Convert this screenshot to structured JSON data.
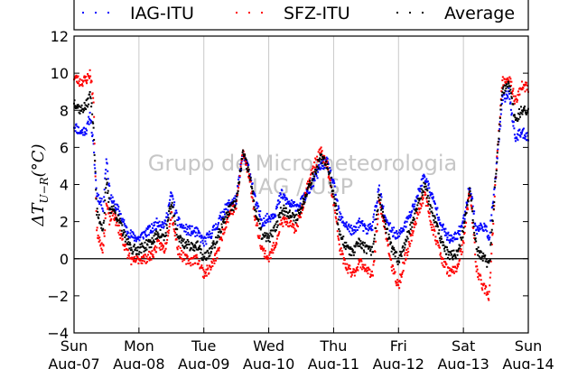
{
  "chart_data": {
    "type": "scatter",
    "ylabel": "ΔT_{U−R}(°C)",
    "ylabel_display": "ΔT",
    "ylabel_sub": "U−R",
    "ylabel_unit": "(°C)",
    "ylim": [
      -4,
      12
    ],
    "xlim": [
      0,
      7
    ],
    "yticks": [
      -4,
      -2,
      0,
      2,
      4,
      6,
      8,
      10,
      12
    ],
    "ytick_labels": [
      "−4",
      "−2",
      "0",
      "2",
      "4",
      "6",
      "8",
      "10",
      "12"
    ],
    "xticks": [
      0,
      1,
      2,
      3,
      4,
      5,
      6,
      7
    ],
    "xtick_labels": [
      [
        "Sun",
        "Aug-07"
      ],
      [
        "Mon",
        "Aug-08"
      ],
      [
        "Tue",
        "Aug-09"
      ],
      [
        "Wed",
        "Aug-10"
      ],
      [
        "Thu",
        "Aug-11"
      ],
      [
        "Fri",
        "Aug-12"
      ],
      [
        "Sat",
        "Aug-13"
      ],
      [
        "Sun",
        "Aug-14"
      ]
    ],
    "grid": "vertical",
    "reference_line": 0,
    "legend_position": "top",
    "watermark": [
      "Grupo de Micrometeorologia",
      "IAG / USP"
    ],
    "series": [
      {
        "name": "IAG-ITU",
        "color": "#0000ff",
        "x": [
          0.0,
          0.1,
          0.2,
          0.25,
          0.3,
          0.35,
          0.45,
          0.5,
          0.55,
          0.6,
          0.7,
          0.8,
          0.9,
          1.0,
          1.1,
          1.2,
          1.3,
          1.4,
          1.5,
          1.6,
          1.7,
          1.8,
          1.9,
          2.0,
          2.1,
          2.2,
          2.3,
          2.4,
          2.5,
          2.6,
          2.7,
          2.8,
          2.9,
          3.0,
          3.1,
          3.2,
          3.3,
          3.4,
          3.5,
          3.6,
          3.7,
          3.8,
          3.9,
          4.0,
          4.1,
          4.2,
          4.3,
          4.4,
          4.5,
          4.6,
          4.7,
          4.8,
          4.9,
          5.0,
          5.1,
          5.2,
          5.3,
          5.4,
          5.5,
          5.6,
          5.7,
          5.8,
          5.9,
          6.0,
          6.1,
          6.2,
          6.3,
          6.4,
          6.5,
          6.6,
          6.7,
          6.8,
          6.9,
          7.0
        ],
        "y": [
          7.2,
          6.8,
          7.0,
          7.8,
          6.0,
          3.5,
          2.8,
          5.5,
          3.5,
          3.0,
          2.5,
          1.6,
          1.2,
          1.1,
          1.4,
          1.6,
          2.0,
          1.8,
          3.5,
          2.0,
          1.6,
          1.5,
          1.4,
          0.9,
          1.3,
          1.8,
          2.5,
          3.0,
          3.2,
          5.6,
          4.8,
          3.0,
          2.0,
          2.2,
          2.5,
          3.5,
          3.0,
          2.8,
          3.0,
          3.6,
          4.2,
          5.0,
          5.2,
          4.0,
          2.2,
          1.8,
          1.4,
          2.0,
          1.5,
          1.8,
          3.8,
          2.0,
          1.5,
          1.2,
          1.8,
          2.5,
          3.5,
          4.5,
          3.5,
          2.5,
          1.5,
          1.0,
          1.2,
          2.0,
          4.0,
          1.5,
          1.8,
          1.2,
          4.5,
          8.5,
          9.0,
          6.5,
          6.8,
          6.6
        ]
      },
      {
        "name": "SFZ-ITU",
        "color": "#ff0000",
        "x": [
          0.0,
          0.1,
          0.2,
          0.25,
          0.3,
          0.35,
          0.45,
          0.5,
          0.55,
          0.6,
          0.7,
          0.8,
          0.9,
          1.0,
          1.1,
          1.2,
          1.3,
          1.4,
          1.5,
          1.6,
          1.7,
          1.8,
          1.9,
          2.0,
          2.1,
          2.2,
          2.3,
          2.4,
          2.5,
          2.6,
          2.7,
          2.8,
          2.9,
          3.0,
          3.1,
          3.2,
          3.3,
          3.4,
          3.5,
          3.6,
          3.7,
          3.8,
          3.9,
          4.0,
          4.1,
          4.2,
          4.3,
          4.4,
          4.5,
          4.6,
          4.7,
          4.8,
          4.9,
          5.0,
          5.1,
          5.2,
          5.3,
          5.4,
          5.5,
          5.6,
          5.7,
          5.8,
          5.9,
          6.0,
          6.1,
          6.2,
          6.3,
          6.4,
          6.5,
          6.6,
          6.7,
          6.8,
          6.9,
          7.0
        ],
        "y": [
          9.8,
          9.5,
          9.7,
          10.0,
          8.5,
          1.5,
          0.5,
          3.0,
          2.0,
          2.5,
          1.5,
          0.5,
          -0.2,
          0.0,
          0.0,
          0.2,
          0.8,
          0.5,
          2.5,
          0.5,
          0.0,
          -0.1,
          0.0,
          -0.8,
          -0.5,
          0.2,
          1.5,
          2.5,
          2.8,
          5.8,
          4.5,
          2.0,
          0.5,
          0.0,
          0.8,
          2.0,
          2.0,
          1.5,
          2.5,
          4.0,
          5.0,
          5.8,
          5.0,
          3.0,
          0.5,
          -0.5,
          -0.8,
          -0.2,
          -0.5,
          -1.0,
          3.0,
          1.5,
          -0.5,
          -1.5,
          0.0,
          1.2,
          2.5,
          3.5,
          2.0,
          0.8,
          -0.3,
          -0.8,
          -0.5,
          0.8,
          3.8,
          -0.5,
          -1.5,
          -2.0,
          4.5,
          9.5,
          9.8,
          8.5,
          9.3,
          9.2
        ]
      },
      {
        "name": "Average",
        "color": "#000000",
        "x": [
          0.0,
          0.1,
          0.2,
          0.25,
          0.3,
          0.35,
          0.45,
          0.5,
          0.55,
          0.6,
          0.7,
          0.8,
          0.9,
          1.0,
          1.1,
          1.2,
          1.3,
          1.4,
          1.5,
          1.6,
          1.7,
          1.8,
          1.9,
          2.0,
          2.1,
          2.2,
          2.3,
          2.4,
          2.5,
          2.6,
          2.7,
          2.8,
          2.9,
          3.0,
          3.1,
          3.2,
          3.3,
          3.4,
          3.5,
          3.6,
          3.7,
          3.8,
          3.9,
          4.0,
          4.1,
          4.2,
          4.3,
          4.4,
          4.5,
          4.6,
          4.7,
          4.8,
          4.9,
          5.0,
          5.1,
          5.2,
          5.3,
          5.4,
          5.5,
          5.6,
          5.7,
          5.8,
          5.9,
          6.0,
          6.1,
          6.2,
          6.3,
          6.4,
          6.5,
          6.6,
          6.7,
          6.8,
          6.9,
          7.0
        ],
        "y": [
          8.5,
          8.0,
          8.3,
          8.9,
          7.2,
          2.5,
          1.6,
          4.2,
          2.7,
          2.7,
          2.0,
          1.0,
          0.5,
          0.5,
          0.7,
          0.9,
          1.4,
          1.1,
          3.0,
          1.2,
          0.8,
          0.7,
          0.7,
          0.0,
          0.4,
          1.0,
          2.0,
          2.7,
          3.0,
          5.7,
          4.6,
          2.5,
          1.2,
          1.1,
          1.6,
          2.7,
          2.5,
          2.1,
          2.7,
          3.8,
          4.6,
          5.4,
          5.1,
          3.5,
          1.3,
          0.6,
          0.3,
          0.9,
          0.5,
          0.4,
          3.4,
          1.7,
          0.5,
          -0.1,
          0.9,
          1.8,
          3.0,
          4.0,
          2.7,
          1.6,
          0.6,
          0.1,
          0.3,
          1.4,
          3.9,
          0.5,
          0.1,
          -0.4,
          4.5,
          9.0,
          9.4,
          7.5,
          8.0,
          7.9
        ]
      }
    ]
  }
}
